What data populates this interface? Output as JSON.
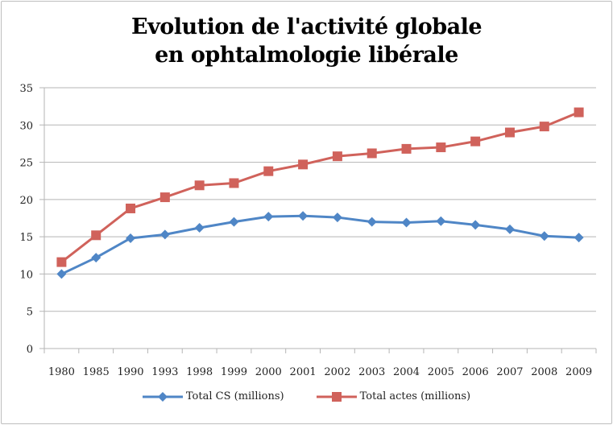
{
  "chart_data": {
    "type": "line",
    "title_lines": [
      "Evolution de l'activité globale",
      "en ophtalmologie libérale"
    ],
    "xlabel": "",
    "ylabel": "",
    "categories": [
      "1980",
      "1985",
      "1990",
      "1993",
      "1998",
      "1999",
      "2000",
      "2001",
      "2002",
      "2003",
      "2004",
      "2005",
      "2006",
      "2007",
      "2008",
      "2009"
    ],
    "ylim": [
      0,
      35
    ],
    "yticks": [
      0,
      5,
      10,
      15,
      20,
      25,
      30,
      35
    ],
    "grid": true,
    "legend_position": "bottom",
    "series": [
      {
        "name": "Total CS (millions)",
        "color": "#4f86c6",
        "marker": "diamond",
        "values": [
          10.0,
          12.2,
          14.8,
          15.3,
          16.2,
          17.0,
          17.7,
          17.8,
          17.6,
          17.0,
          16.9,
          17.1,
          16.6,
          16.0,
          15.1,
          14.9
        ]
      },
      {
        "name": "Total actes (millions)",
        "color": "#d0625b",
        "marker": "square",
        "values": [
          11.6,
          15.2,
          18.8,
          20.3,
          21.9,
          22.2,
          23.8,
          24.7,
          25.8,
          26.2,
          26.8,
          27.0,
          27.8,
          29.0,
          29.8,
          31.7
        ]
      }
    ]
  }
}
